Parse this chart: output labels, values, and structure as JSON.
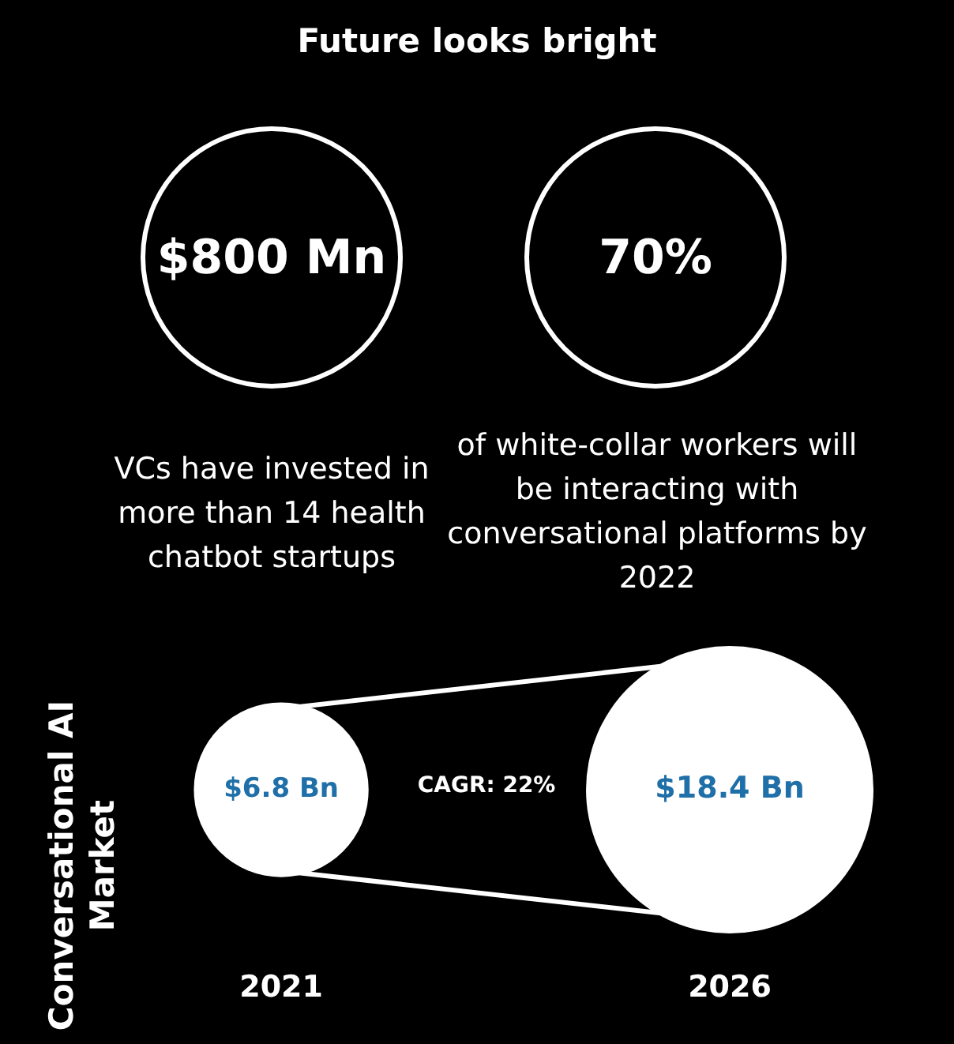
{
  "chart_data": [
    {
      "type": "other",
      "title": "Future looks bright",
      "annotations": [
        "$800 Mn",
        "VCs have invested in more than 14 health chatbot startups",
        "70%",
        "of white-collar workers will be interacting with conversational platforms by 2022"
      ]
    },
    {
      "type": "other",
      "ylabel": "Conversational AI Market",
      "categories": [
        "2021",
        "2026"
      ],
      "values": [
        6.8,
        18.4
      ],
      "value_labels": [
        "$6.8 Bn",
        "$18.4 Bn"
      ],
      "colors": [
        "#ffffff",
        "#ffffff"
      ],
      "annotations": [
        "CAGR: 22%"
      ]
    }
  ]
}
